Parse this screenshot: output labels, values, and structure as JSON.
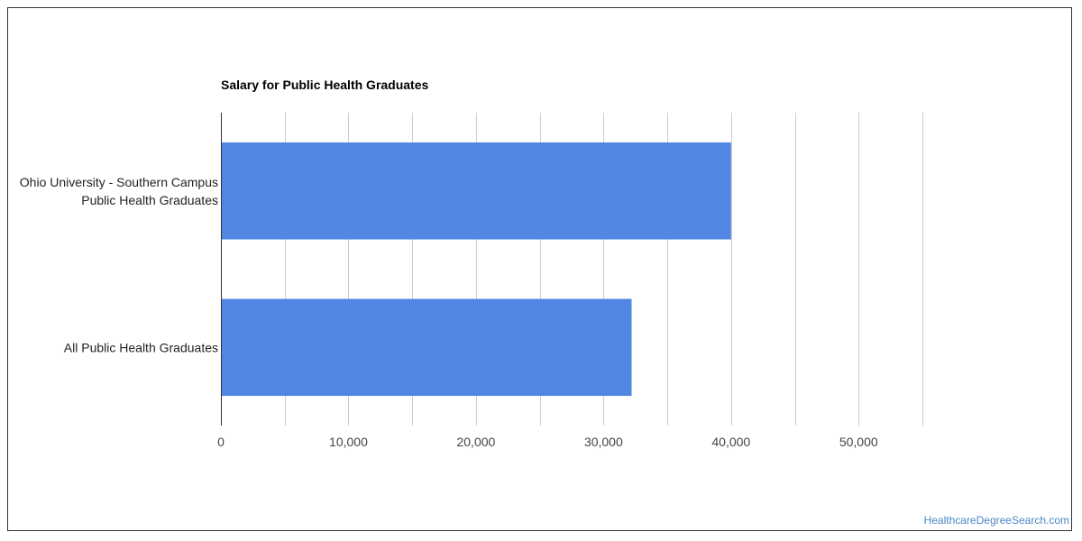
{
  "chart_data": {
    "type": "bar",
    "orientation": "horizontal",
    "title": "Salary for Public Health Graduates",
    "categories": [
      [
        "Ohio University - Southern Campus",
        "Public Health Graduates"
      ],
      [
        "All Public Health Graduates"
      ]
    ],
    "values": [
      40000,
      32200
    ],
    "xlim": [
      0,
      55000
    ],
    "ticks": [
      0,
      10000,
      20000,
      30000,
      40000,
      50000
    ],
    "tick_labels": [
      "0",
      "10,000",
      "20,000",
      "30,000",
      "40,000",
      "50,000"
    ],
    "minor_gridlines": true,
    "grid": true,
    "legend": "none",
    "bar_color": "#5286e3",
    "grid_color": "#cccccc",
    "axis_color": "#333333"
  },
  "footer": {
    "source_label": "HealthcareDegreeSearch.com"
  }
}
